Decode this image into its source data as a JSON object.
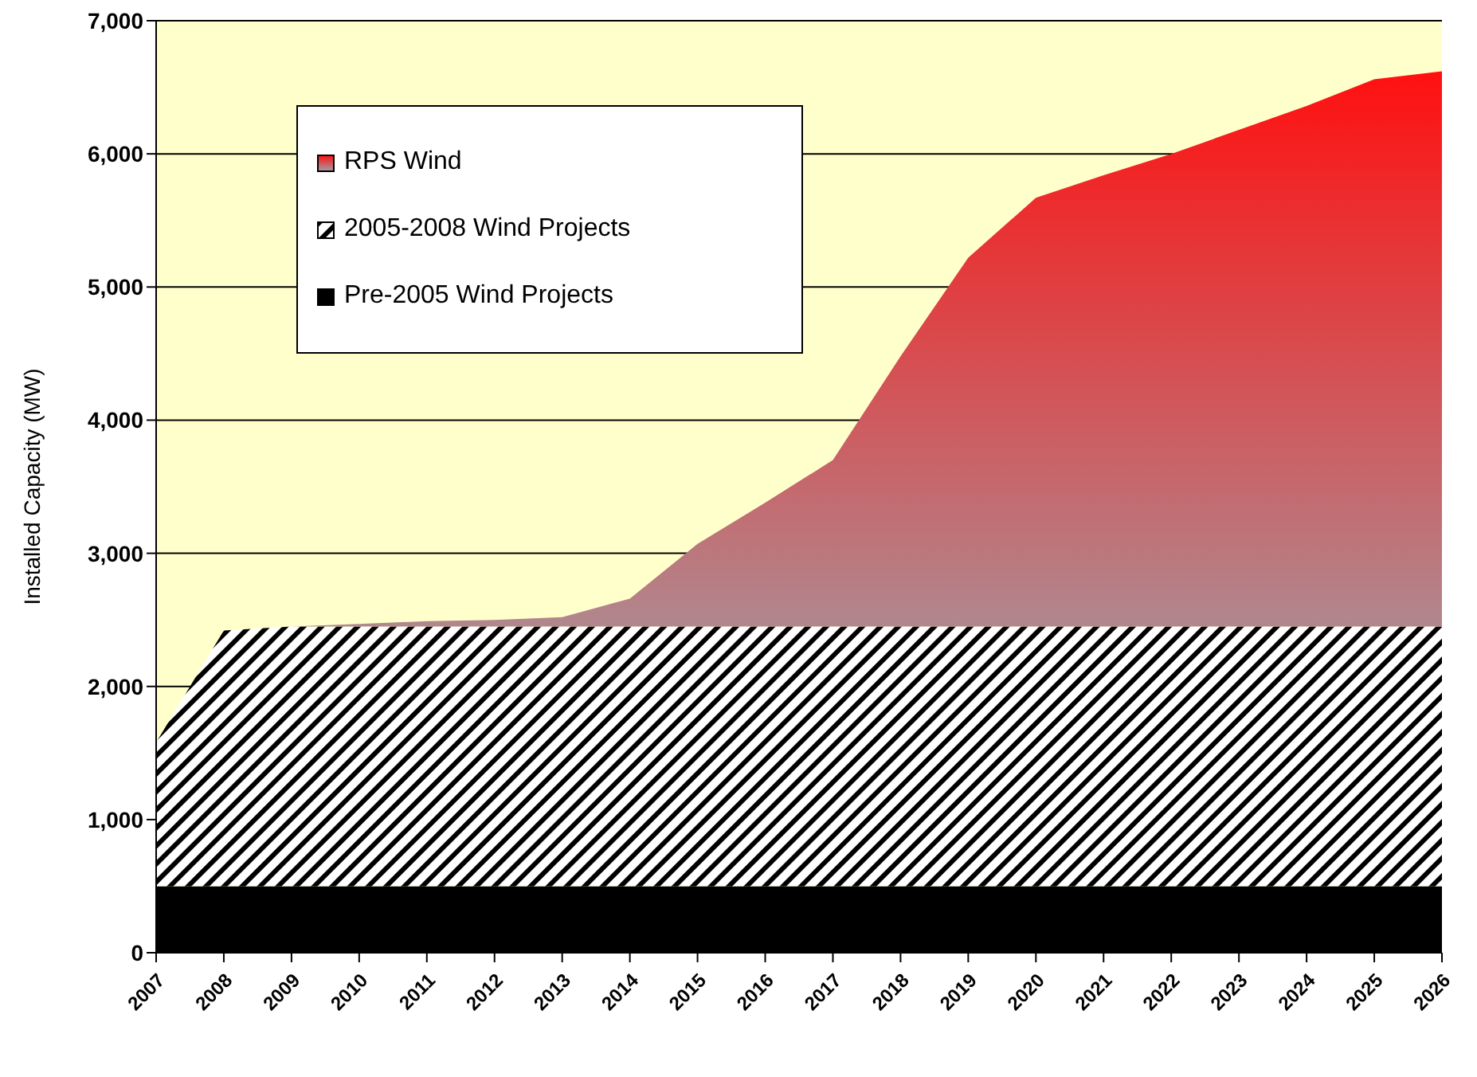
{
  "chart_data": {
    "type": "area",
    "stacked": true,
    "ylabel": "Installed Capacity (MW)",
    "categories": [
      "2007",
      "2008",
      "2009",
      "2010",
      "2011",
      "2012",
      "2013",
      "2014",
      "2015",
      "2016",
      "2017",
      "2018",
      "2019",
      "2020",
      "2021",
      "2022",
      "2023",
      "2024",
      "2025",
      "2026"
    ],
    "series": [
      {
        "name": "Pre-2005 Wind Projects",
        "color": "#000000",
        "values": [
          500,
          500,
          500,
          500,
          500,
          500,
          500,
          500,
          500,
          500,
          500,
          500,
          500,
          500,
          500,
          500,
          500,
          500,
          500,
          500
        ]
      },
      {
        "name": "2005-2008 Wind Projects",
        "color": "#000000",
        "values": [
          1080,
          1920,
          1950,
          1950,
          1950,
          1950,
          1950,
          1950,
          1950,
          1950,
          1950,
          1950,
          1950,
          1950,
          1950,
          1950,
          1950,
          1950,
          1950,
          1950
        ]
      },
      {
        "name": "RPS Wind",
        "color": "#ff1010",
        "values": [
          0,
          0,
          0,
          20,
          40,
          50,
          70,
          210,
          620,
          930,
          1250,
          2030,
          2770,
          3220,
          3390,
          3550,
          3730,
          3910,
          4110,
          4170
        ]
      }
    ],
    "ylim": [
      0,
      7000
    ],
    "yticks": [
      0,
      {
        "value": 1000,
        "label": "1,000"
      },
      {
        "value": 2000,
        "label": "2,000"
      },
      {
        "value": 3000,
        "label": "3,000"
      },
      {
        "value": 4000,
        "label": "4,000"
      },
      {
        "value": 5000,
        "label": "5,000"
      },
      {
        "value": 6000,
        "label": "6,000"
      },
      {
        "value": 7000,
        "label": "7,000"
      }
    ],
    "grid": "y",
    "legend": "top left"
  }
}
